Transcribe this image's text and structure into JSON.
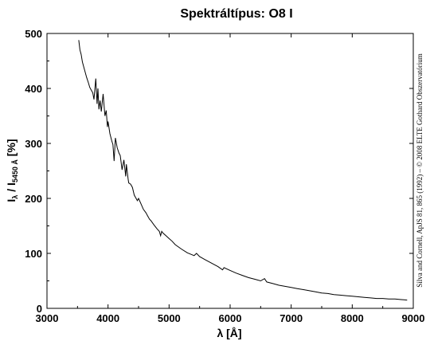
{
  "chart_data": {
    "type": "line",
    "title": "Spektráltípus: O8 I",
    "xlabel": "λ [Å]",
    "ylabel": {
      "main": "I",
      "sub1": "λ",
      "mid": " / I",
      "sub2": "5450 Å",
      "end": " [%]"
    },
    "credit": "Silva and Cornell, ApJS 81, 865 (1992) – © 2008 ELTE Gothard Obszervatórium",
    "xlim": [
      3000,
      9000
    ],
    "ylim": [
      0,
      500
    ],
    "x_ticks": [
      3000,
      4000,
      5000,
      6000,
      7000,
      8000,
      9000
    ],
    "x_tick_labels": [
      "3000",
      "4000",
      "5000",
      "6000",
      "7000",
      "8000",
      "9000"
    ],
    "y_ticks": [
      0,
      100,
      200,
      300,
      400,
      500
    ],
    "y_tick_labels": [
      "0",
      "100",
      "200",
      "300",
      "400",
      "500"
    ],
    "grid": false,
    "series": [
      {
        "color": "#000000",
        "x": [
          3520,
          3540,
          3560,
          3580,
          3600,
          3620,
          3650,
          3680,
          3700,
          3720,
          3750,
          3770,
          3800,
          3820,
          3835,
          3850,
          3870,
          3890,
          3920,
          3950,
          3970,
          3990,
          4000,
          4030,
          4060,
          4080,
          4100,
          4120,
          4150,
          4180,
          4200,
          4230,
          4260,
          4290,
          4300,
          4330,
          4340,
          4370,
          4400,
          4430,
          4460,
          4480,
          4500,
          4540,
          4580,
          4620,
          4650,
          4680,
          4700,
          4750,
          4800,
          4840,
          4861,
          4880,
          4900,
          4950,
          5000,
          5050,
          5100,
          5200,
          5300,
          5411,
          5450,
          5500,
          5600,
          5700,
          5800,
          5876,
          5900,
          6000,
          6100,
          6200,
          6300,
          6400,
          6500,
          6563,
          6600,
          6700,
          6800,
          6900,
          7000,
          7100,
          7200,
          7300,
          7400,
          7500,
          7600,
          7700,
          7800,
          7900,
          8000,
          8100,
          8200,
          8300,
          8400,
          8500,
          8600,
          8700,
          8800,
          8900
        ],
        "y": [
          488,
          470,
          462,
          448,
          440,
          432,
          420,
          410,
          402,
          398,
          392,
          380,
          418,
          372,
          400,
          362,
          378,
          358,
          390,
          350,
          360,
          330,
          340,
          318,
          305,
          298,
          268,
          310,
          292,
          282,
          278,
          252,
          270,
          240,
          262,
          234,
          228,
          226,
          220,
          206,
          200,
          196,
          200,
          190,
          180,
          174,
          168,
          162,
          160,
          152,
          145,
          140,
          132,
          140,
          137,
          132,
          127,
          122,
          116,
          108,
          101,
          96,
          100,
          94,
          88,
          82,
          76,
          70,
          74,
          69,
          64,
          60,
          56,
          53,
          50,
          54,
          48,
          45,
          42,
          40,
          38,
          36,
          34,
          32,
          30,
          28,
          27,
          25,
          24,
          23,
          22,
          21,
          20,
          19,
          18,
          18,
          17,
          17,
          16,
          15
        ]
      }
    ]
  }
}
